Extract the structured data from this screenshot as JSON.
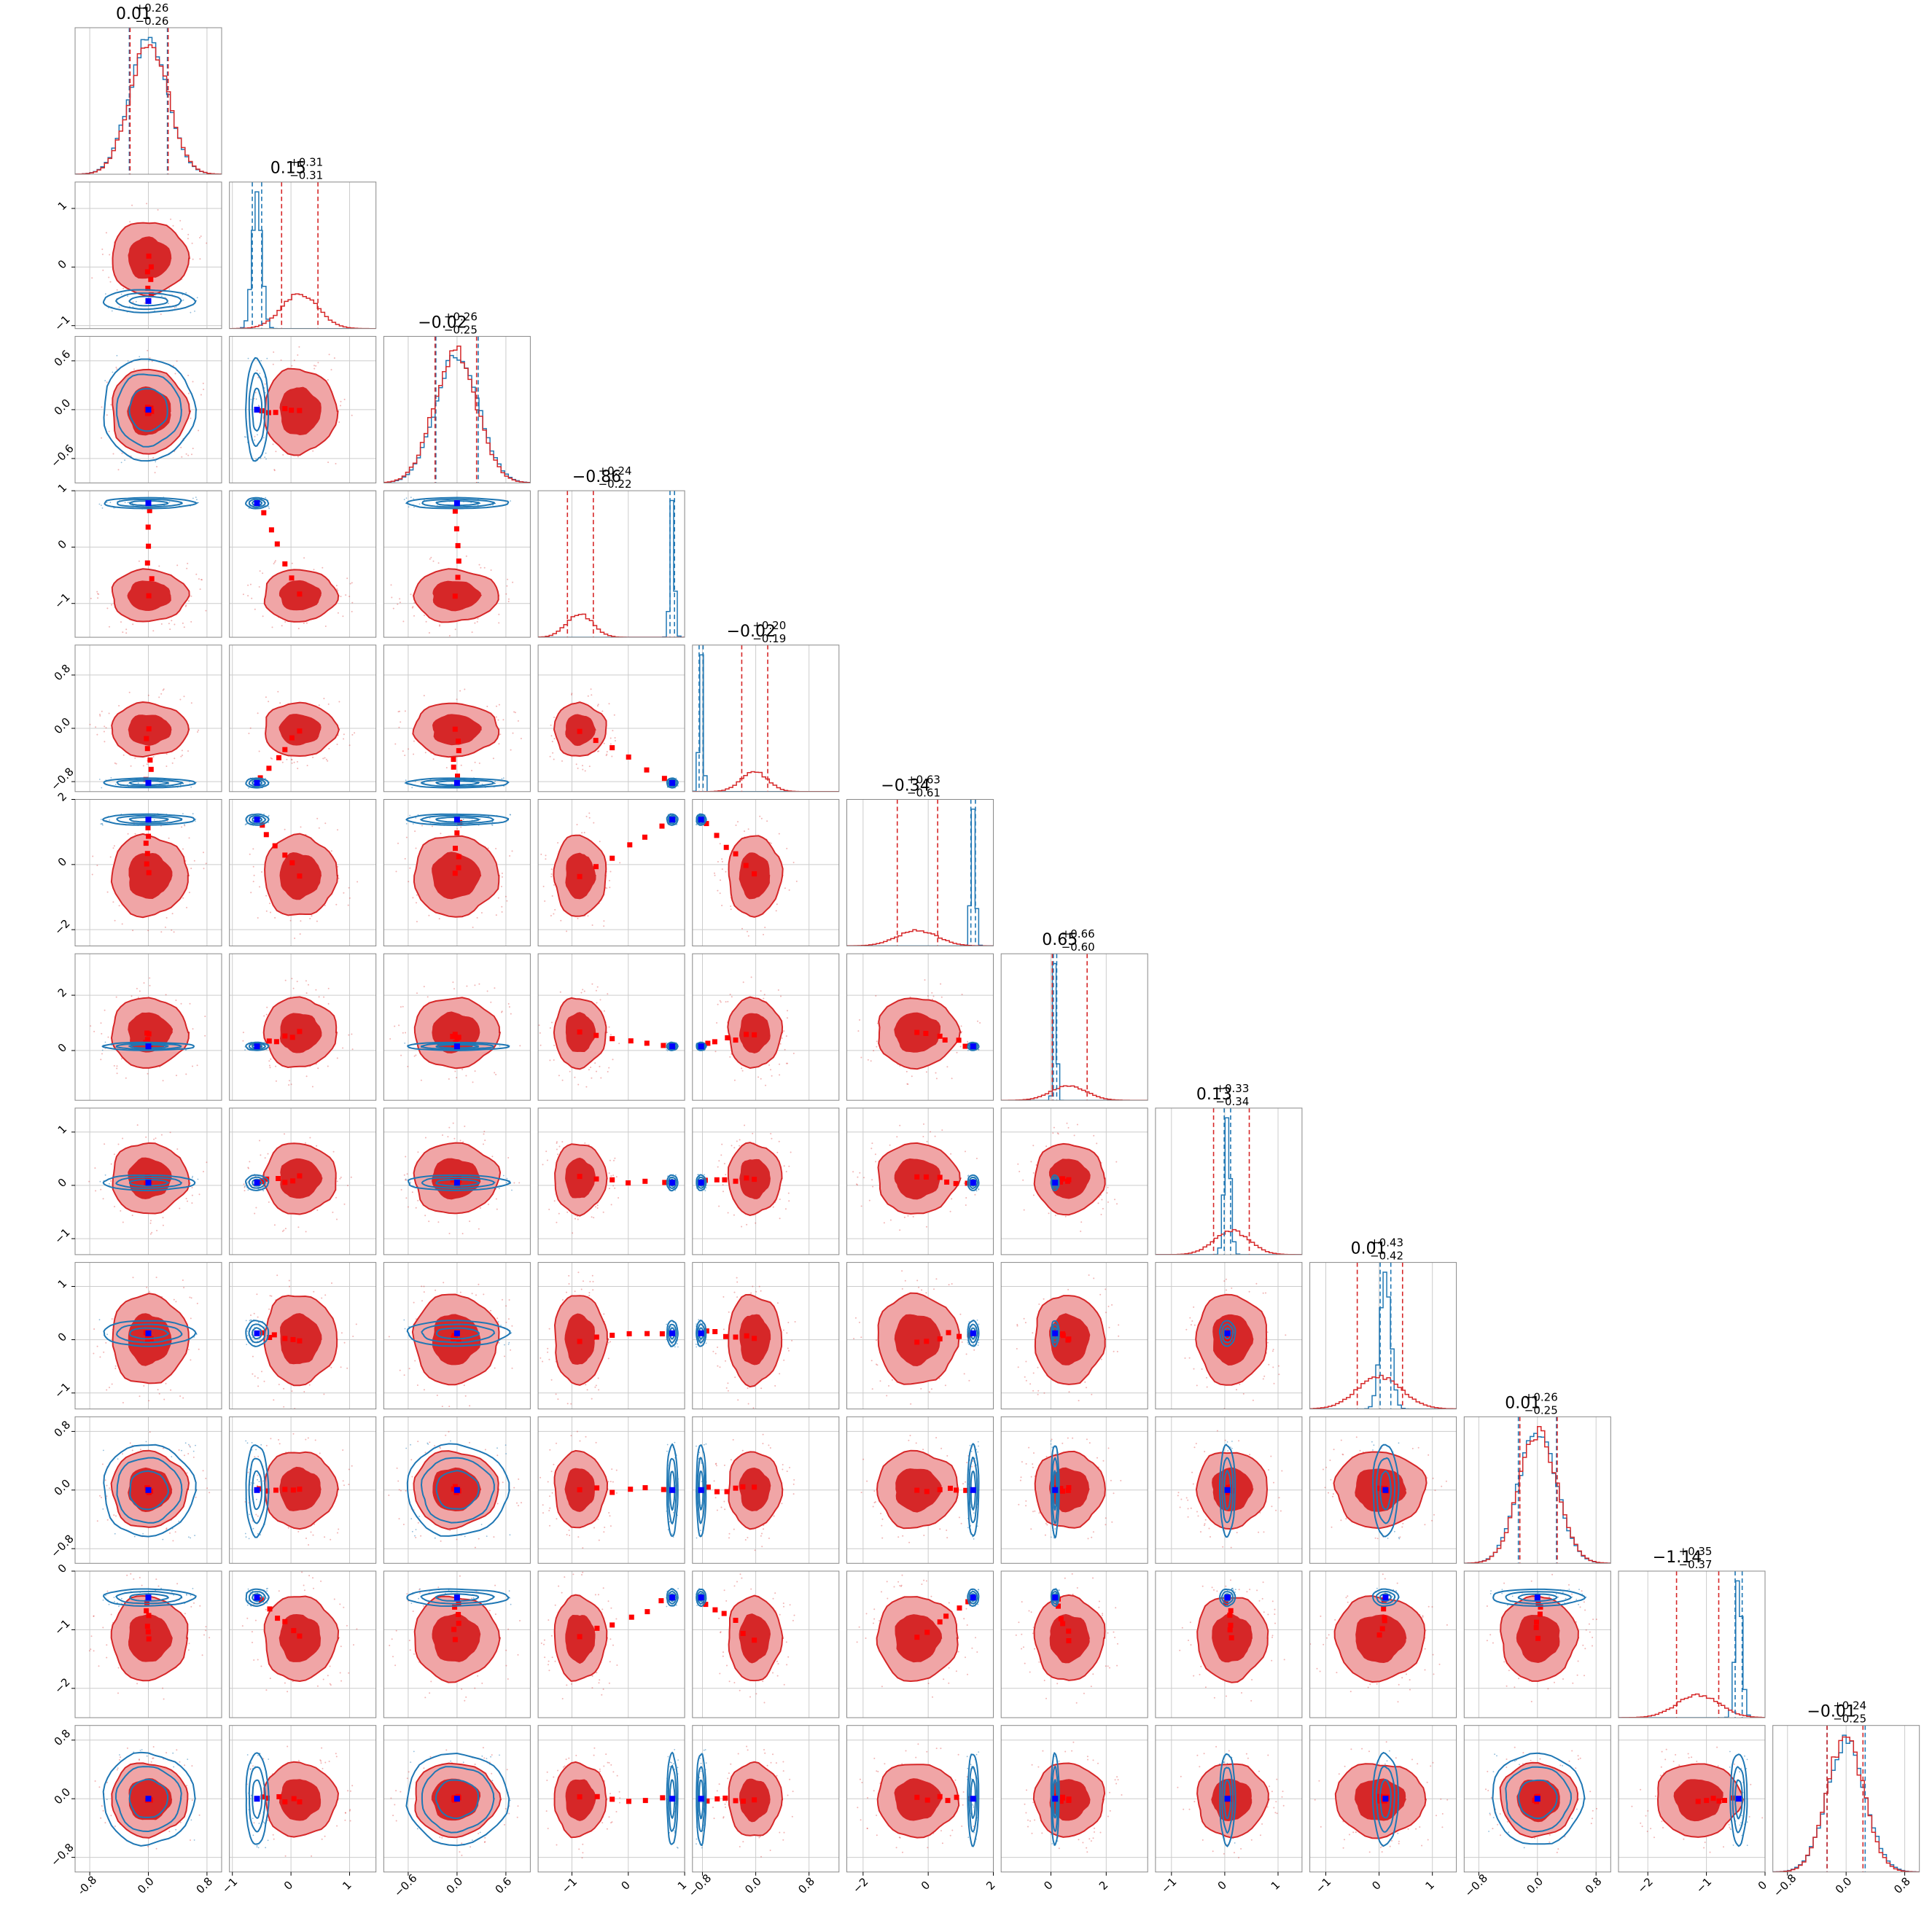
{
  "chart_data": {
    "type": "corner",
    "n_params": 12,
    "grid": true,
    "colors": {
      "red": "#d62728",
      "red_fill_light": "#f0a5a6",
      "red_fill_dark": "#d62728",
      "blue": "#1f77b4",
      "marker_blue": "#0000ff",
      "marker_red": "#ff0000",
      "grid": "#cccccc",
      "frame": "#888888"
    },
    "params": [
      {
        "range": [
          -1.0,
          1.0
        ],
        "xticks": [
          "-0.8",
          "0.0",
          "0.8"
        ],
        "xtick_values": [
          -0.8,
          0.0,
          0.8
        ],
        "yticks": [],
        "ytick_values": [],
        "title": {
          "median": "0.01",
          "plus": "+0.26",
          "minus": "−0.26"
        },
        "red": {
          "mu": 0.01,
          "sigma": 0.26,
          "q": [
            -0.25,
            0.27
          ]
        },
        "blue": {
          "mu": 0.0,
          "sigma": 0.26,
          "q": [
            -0.26,
            0.26
          ]
        }
      },
      {
        "range": [
          -1.05,
          1.45
        ],
        "xticks": [
          "−1",
          "0",
          "1"
        ],
        "xtick_values": [
          -1,
          0,
          1
        ],
        "yticks": [
          "1",
          "0",
          "−1"
        ],
        "ytick_values": [
          1,
          0,
          -1
        ],
        "title": {
          "median": "0.15",
          "plus": "+0.31",
          "minus": "−0.31"
        },
        "red": {
          "mu": 0.15,
          "sigma": 0.31,
          "q": [
            -0.16,
            0.46
          ]
        },
        "blue": {
          "mu": -0.58,
          "sigma": 0.08,
          "q": [
            -0.66,
            -0.5
          ]
        }
      },
      {
        "range": [
          -0.9,
          0.9
        ],
        "xticks": [
          "−0.6",
          "0.0",
          "0.6"
        ],
        "xtick_values": [
          -0.6,
          0.0,
          0.6
        ],
        "yticks": [
          "0.6",
          "0.0",
          "−0.6"
        ],
        "ytick_values": [
          0.6,
          0.0,
          -0.6
        ],
        "title": {
          "median": "−0.02",
          "plus": "+0.26",
          "minus": "−0.25"
        },
        "red": {
          "mu": -0.02,
          "sigma": 0.26,
          "q": [
            -0.27,
            0.24
          ]
        },
        "blue": {
          "mu": 0.0,
          "sigma": 0.26,
          "q": [
            -0.26,
            0.26
          ]
        }
      },
      {
        "range": [
          -1.6,
          1.0
        ],
        "xticks": [
          "−1",
          "0",
          "1"
        ],
        "xtick_values": [
          -1,
          0,
          1
        ],
        "yticks": [
          "1",
          "0",
          "−1"
        ],
        "ytick_values": [
          1,
          0,
          -1
        ],
        "title": {
          "median": "−0.86",
          "plus": "+0.24",
          "minus": "−0.22"
        },
        "red": {
          "mu": -0.86,
          "sigma": 0.23,
          "q": [
            -1.08,
            -0.62
          ]
        },
        "blue": {
          "mu": 0.78,
          "sigma": 0.04,
          "q": [
            0.74,
            0.82
          ]
        }
      },
      {
        "range": [
          -0.95,
          1.25
        ],
        "xticks": [
          "−0.8",
          "0.0",
          "0.8"
        ],
        "xtick_values": [
          -0.8,
          0.0,
          0.8
        ],
        "yticks": [
          "0.8",
          "0.0",
          "−0.8"
        ],
        "ytick_values": [
          0.8,
          0.0,
          -0.8
        ],
        "title": {
          "median": "−0.02",
          "plus": "+0.20",
          "minus": "−0.19"
        },
        "red": {
          "mu": -0.02,
          "sigma": 0.2,
          "q": [
            -0.21,
            0.18
          ]
        },
        "blue": {
          "mu": -0.82,
          "sigma": 0.03,
          "q": [
            -0.85,
            -0.79
          ]
        }
      },
      {
        "range": [
          -2.5,
          2.0
        ],
        "xticks": [
          "−2",
          "0",
          "2"
        ],
        "xtick_values": [
          -2,
          0,
          2
        ],
        "yticks": [
          "2",
          "0",
          "−2"
        ],
        "ytick_values": [
          2,
          0,
          -2
        ],
        "title": {
          "median": "−0.34",
          "plus": "+0.63",
          "minus": "−0.61"
        },
        "red": {
          "mu": -0.34,
          "sigma": 0.62,
          "q": [
            -0.95,
            0.29
          ]
        },
        "blue": {
          "mu": 1.38,
          "sigma": 0.07,
          "q": [
            1.31,
            1.45
          ]
        }
      },
      {
        "range": [
          -1.8,
          3.5
        ],
        "xticks": [
          "0",
          "2"
        ],
        "xtick_values": [
          0,
          2
        ],
        "yticks": [
          "2",
          "0"
        ],
        "ytick_values": [
          2,
          0
        ],
        "title": {
          "median": "0.65",
          "plus": "+0.66",
          "minus": "−0.60"
        },
        "red": {
          "mu": 0.65,
          "sigma": 0.63,
          "q": [
            0.05,
            1.31
          ]
        },
        "blue": {
          "mu": 0.15,
          "sigma": 0.06,
          "q": [
            0.09,
            0.21
          ]
        }
      },
      {
        "range": [
          -1.3,
          1.45
        ],
        "xticks": [
          "−1",
          "0",
          "1"
        ],
        "xtick_values": [
          -1,
          0,
          1
        ],
        "yticks": [
          "1",
          "0",
          "−1"
        ],
        "ytick_values": [
          1,
          0,
          -1
        ],
        "title": {
          "median": "0.13",
          "plus": "+0.33",
          "minus": "−0.34"
        },
        "red": {
          "mu": 0.13,
          "sigma": 0.33,
          "q": [
            -0.21,
            0.46
          ]
        },
        "blue": {
          "mu": 0.05,
          "sigma": 0.06,
          "q": [
            -0.01,
            0.11
          ]
        }
      },
      {
        "range": [
          -1.3,
          1.45
        ],
        "xticks": [
          "−1",
          "0",
          "1"
        ],
        "xtick_values": [
          -1,
          0,
          1
        ],
        "yticks": [
          "1",
          "0",
          "−1"
        ],
        "ytick_values": [
          1,
          0,
          -1
        ],
        "title": {
          "median": "0.01",
          "plus": "+0.43",
          "minus": "−0.42"
        },
        "red": {
          "mu": 0.01,
          "sigma": 0.42,
          "q": [
            -0.41,
            0.44
          ]
        },
        "blue": {
          "mu": 0.12,
          "sigma": 0.1,
          "q": [
            0.02,
            0.22
          ]
        }
      },
      {
        "range": [
          -1.0,
          1.0
        ],
        "xticks": [
          "−0.8",
          "0.0",
          "0.8"
        ],
        "xtick_values": [
          -0.8,
          0.0,
          0.8
        ],
        "yticks": [
          "0.8",
          "0.0",
          "−0.8"
        ],
        "ytick_values": [
          0.8,
          0.0,
          -0.8
        ],
        "title": {
          "median": "0.01",
          "plus": "+0.26",
          "minus": "−0.25"
        },
        "red": {
          "mu": 0.01,
          "sigma": 0.26,
          "q": [
            -0.24,
            0.27
          ]
        },
        "blue": {
          "mu": 0.0,
          "sigma": 0.26,
          "q": [
            -0.26,
            0.26
          ]
        }
      },
      {
        "range": [
          -2.5,
          0.0
        ],
        "xticks": [
          "−2",
          "−1",
          "0"
        ],
        "xtick_values": [
          -2,
          -1,
          0
        ],
        "yticks": [
          "0",
          "−1",
          "−2"
        ],
        "ytick_values": [
          0,
          -1,
          -2
        ],
        "title": {
          "median": "−1.14",
          "plus": "+0.35",
          "minus": "−0.37"
        },
        "red": {
          "mu": -1.14,
          "sigma": 0.36,
          "q": [
            -1.51,
            -0.79
          ]
        },
        "blue": {
          "mu": -0.45,
          "sigma": 0.06,
          "q": [
            -0.51,
            -0.39
          ]
        }
      },
      {
        "range": [
          -1.0,
          1.0
        ],
        "xticks": [
          "−0.8",
          "0.0",
          "0.8"
        ],
        "xtick_values": [
          -0.8,
          0.0,
          0.8
        ],
        "yticks": [
          "0.8",
          "0.0",
          "−0.8"
        ],
        "ytick_values": [
          0.8,
          0.0,
          -0.8
        ],
        "title": {
          "median": "−0.01",
          "plus": "+0.24",
          "minus": "−0.25"
        },
        "red": {
          "mu": -0.01,
          "sigma": 0.25,
          "q": [
            -0.26,
            0.23
          ]
        },
        "blue": {
          "mu": 0.0,
          "sigma": 0.26,
          "q": [
            -0.26,
            0.26
          ]
        }
      }
    ]
  }
}
